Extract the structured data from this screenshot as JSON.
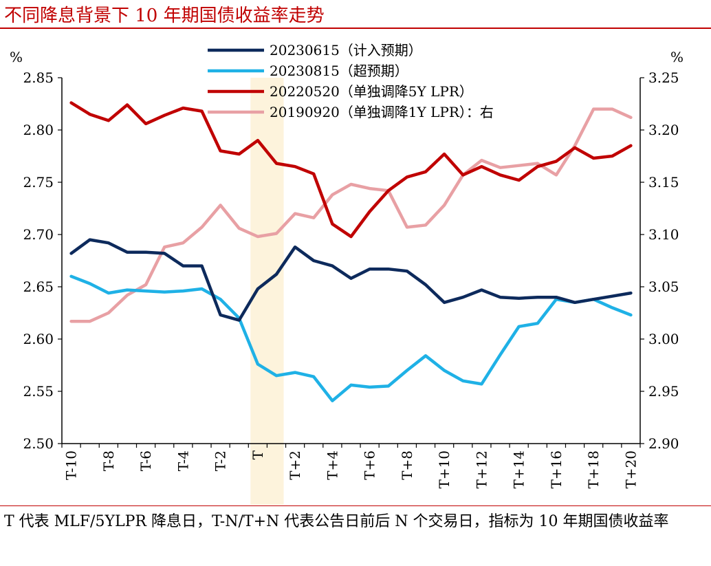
{
  "title": "不同降息背景下 10 年期国债收益率走势",
  "note": "T 代表 MLF/5YLPR 降息日，T-N/T+N 代表公告日前后 N 个交易日，指标为 10 年期国债收益率",
  "chart_data": {
    "type": "line",
    "x": [
      "T-10",
      "T-9",
      "T-8",
      "T-7",
      "T-6",
      "T-5",
      "T-4",
      "T-3",
      "T-2",
      "T-1",
      "T",
      "T+1",
      "T+2",
      "T+3",
      "T+4",
      "T+5",
      "T+6",
      "T+7",
      "T+8",
      "T+9",
      "T+10",
      "T+11",
      "T+12",
      "T+13",
      "T+14",
      "T+15",
      "T+16",
      "T+17",
      "T+18",
      "T+19",
      "T+20"
    ],
    "x_tick_labels": [
      "T-10",
      "T-8",
      "T-6",
      "T-4",
      "T-2",
      "T",
      "T+2",
      "T+4",
      "T+6",
      "T+8",
      "T+10",
      "T+12",
      "T+14",
      "T+16",
      "T+18",
      "T+20"
    ],
    "left_axis": {
      "unit": "%",
      "ylim": [
        2.5,
        2.85
      ],
      "ticks": [
        "2.50",
        "2.55",
        "2.60",
        "2.65",
        "2.70",
        "2.75",
        "2.80",
        "2.85"
      ]
    },
    "right_axis": {
      "unit": "%",
      "ylim": [
        2.9,
        3.25
      ],
      "ticks": [
        "2.90",
        "2.95",
        "3.00",
        "3.05",
        "3.10",
        "3.15",
        "3.20",
        "3.25"
      ]
    },
    "highlight": {
      "from": "T",
      "to": "T+1",
      "color": "#fdf3dc"
    },
    "grid": false,
    "legend_position": "top-center",
    "series": [
      {
        "name": "20230615（计入预期）",
        "color": "#0d2a5c",
        "axis": "left",
        "values": [
          2.682,
          2.695,
          2.692,
          2.683,
          2.683,
          2.682,
          2.67,
          2.67,
          2.623,
          2.618,
          2.648,
          2.662,
          2.688,
          2.675,
          2.67,
          2.658,
          2.667,
          2.667,
          2.665,
          2.652,
          2.635,
          2.64,
          2.647,
          2.64,
          2.639,
          2.64,
          2.64,
          2.635,
          2.638,
          2.641,
          2.644
        ]
      },
      {
        "name": "20230815（超预期）",
        "color": "#1fb1e6",
        "axis": "left",
        "values": [
          2.66,
          2.653,
          2.644,
          2.647,
          2.646,
          2.645,
          2.646,
          2.648,
          2.638,
          2.62,
          2.576,
          2.565,
          2.568,
          2.564,
          2.541,
          2.556,
          2.554,
          2.555,
          2.57,
          2.584,
          2.57,
          2.56,
          2.557,
          2.585,
          2.612,
          2.615,
          2.638,
          2.635,
          2.638,
          2.63,
          2.623
        ]
      },
      {
        "name": "20220520（单独调降5Y LPR）",
        "color": "#c00000",
        "axis": "left",
        "values": [
          2.826,
          2.815,
          2.809,
          2.824,
          2.806,
          2.814,
          2.821,
          2.818,
          2.78,
          2.777,
          2.79,
          2.768,
          2.765,
          2.758,
          2.71,
          2.698,
          2.722,
          2.742,
          2.755,
          2.76,
          2.777,
          2.757,
          2.765,
          2.757,
          2.752,
          2.765,
          2.77,
          2.783,
          2.773,
          2.775,
          2.785
        ]
      },
      {
        "name": "20190920（单独调降1Y LPR）：右",
        "color": "#e8a0a4",
        "axis": "right",
        "values": [
          3.017,
          3.017,
          3.025,
          3.042,
          3.052,
          3.088,
          3.092,
          3.107,
          3.128,
          3.106,
          3.098,
          3.101,
          3.12,
          3.116,
          3.138,
          3.148,
          3.144,
          3.142,
          3.107,
          3.109,
          3.128,
          3.157,
          3.171,
          3.164,
          3.166,
          3.168,
          3.157,
          3.185,
          3.22,
          3.22,
          3.212
        ]
      }
    ]
  }
}
